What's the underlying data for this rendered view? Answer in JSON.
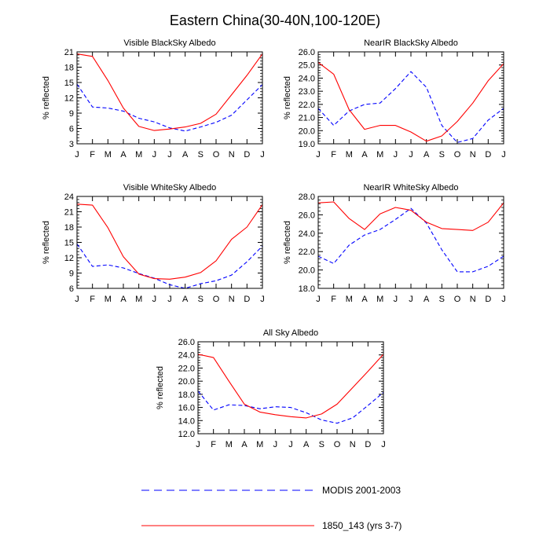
{
  "figure_title": "Eastern China(30-40N,100-120E)",
  "legend": [
    {
      "label": "MODIS 2001-2003",
      "style": "dashed",
      "color": "#0000ff"
    },
    {
      "label": "1850_143 (yrs 3-7)",
      "style": "solid",
      "color": "#ff0000"
    }
  ],
  "chart_data": [
    {
      "type": "line",
      "title": "Visible BlackSky Albedo",
      "ylabel": "% reflected",
      "categories": [
        "J",
        "F",
        "M",
        "A",
        "M",
        "J",
        "J",
        "A",
        "S",
        "O",
        "N",
        "D",
        "J"
      ],
      "ylim": [
        3,
        21
      ],
      "yticks": [
        3,
        6,
        9,
        12,
        15,
        18,
        21
      ],
      "ytick_labels": [
        "3",
        "6",
        "9",
        "12",
        "15",
        "18",
        "21"
      ],
      "series": [
        {
          "name": "MODIS 2001-2003",
          "color": "#0000ff",
          "dash": true,
          "values": [
            14.7,
            10.2,
            10.0,
            9.4,
            8.0,
            7.3,
            6.1,
            5.5,
            6.3,
            7.2,
            8.6,
            11.6,
            14.6
          ]
        },
        {
          "name": "1850_143 (yrs 3-7)",
          "color": "#ff0000",
          "dash": false,
          "values": [
            20.6,
            20.1,
            15.4,
            10.0,
            6.4,
            5.6,
            5.9,
            6.3,
            7.0,
            8.8,
            12.6,
            16.4,
            20.6
          ]
        }
      ]
    },
    {
      "type": "line",
      "title": "NearIR BlackSky Albedo",
      "ylabel": "% reflected",
      "categories": [
        "J",
        "F",
        "M",
        "A",
        "M",
        "J",
        "J",
        "A",
        "S",
        "O",
        "N",
        "D",
        "J"
      ],
      "ylim": [
        19.0,
        26.0
      ],
      "yticks": [
        19,
        20,
        21,
        22,
        23,
        24,
        25,
        26
      ],
      "ytick_labels": [
        "19.0",
        "20.0",
        "21.0",
        "22.0",
        "23.0",
        "24.0",
        "25.0",
        "26.0"
      ],
      "series": [
        {
          "name": "MODIS 2001-2003",
          "color": "#0000ff",
          "dash": true,
          "values": [
            21.7,
            20.4,
            21.5,
            22.0,
            22.1,
            23.2,
            24.5,
            23.3,
            20.4,
            19.1,
            19.4,
            20.8,
            21.7
          ]
        },
        {
          "name": "1850_143 (yrs 3-7)",
          "color": "#ff0000",
          "dash": false,
          "values": [
            25.2,
            24.3,
            21.6,
            20.1,
            20.4,
            20.4,
            19.9,
            19.2,
            19.6,
            20.7,
            22.1,
            23.8,
            25.1
          ]
        }
      ]
    },
    {
      "type": "line",
      "title": "Visible WhiteSky Albedo",
      "ylabel": "% reflected",
      "categories": [
        "J",
        "F",
        "M",
        "A",
        "M",
        "J",
        "J",
        "A",
        "S",
        "O",
        "N",
        "D",
        "J"
      ],
      "ylim": [
        6,
        24
      ],
      "yticks": [
        6,
        9,
        12,
        15,
        18,
        21,
        24
      ],
      "ytick_labels": [
        "6",
        "9",
        "12",
        "15",
        "18",
        "21",
        "24"
      ],
      "series": [
        {
          "name": "MODIS 2001-2003",
          "color": "#0000ff",
          "dash": true,
          "values": [
            14.7,
            10.3,
            10.6,
            10.0,
            8.9,
            8.0,
            6.7,
            6.0,
            6.9,
            7.5,
            8.6,
            11.2,
            14.3
          ]
        },
        {
          "name": "1850_143 (yrs 3-7)",
          "color": "#ff0000",
          "dash": false,
          "values": [
            22.5,
            22.3,
            17.9,
            12.2,
            8.8,
            7.9,
            7.8,
            8.2,
            9.1,
            11.4,
            15.6,
            18.0,
            22.4
          ]
        }
      ]
    },
    {
      "type": "line",
      "title": "NearIR WhiteSky Albedo",
      "ylabel": "% reflected",
      "categories": [
        "J",
        "F",
        "M",
        "A",
        "M",
        "J",
        "J",
        "A",
        "S",
        "O",
        "N",
        "D",
        "J"
      ],
      "ylim": [
        18.0,
        28.0
      ],
      "yticks": [
        18,
        20,
        22,
        24,
        26,
        28
      ],
      "ytick_labels": [
        "18.0",
        "20.0",
        "22.0",
        "24.0",
        "26.0",
        "28.0"
      ],
      "series": [
        {
          "name": "MODIS 2001-2003",
          "color": "#0000ff",
          "dash": true,
          "values": [
            21.5,
            20.7,
            22.7,
            23.8,
            24.4,
            25.5,
            26.7,
            25.1,
            22.2,
            19.8,
            19.8,
            20.4,
            21.5
          ]
        },
        {
          "name": "1850_143 (yrs 3-7)",
          "color": "#ff0000",
          "dash": false,
          "values": [
            27.3,
            27.4,
            25.6,
            24.4,
            26.1,
            26.8,
            26.5,
            25.2,
            24.5,
            24.4,
            24.3,
            25.2,
            27.3
          ]
        }
      ]
    },
    {
      "type": "line",
      "title": "All Sky Albedo",
      "ylabel": "% reflected",
      "categories": [
        "J",
        "F",
        "M",
        "A",
        "M",
        "J",
        "J",
        "A",
        "S",
        "O",
        "N",
        "D",
        "J"
      ],
      "ylim": [
        12.0,
        26.0
      ],
      "yticks": [
        12,
        14,
        16,
        18,
        20,
        22,
        24,
        26
      ],
      "ytick_labels": [
        "12.0",
        "14.0",
        "16.0",
        "18.0",
        "20.0",
        "22.0",
        "24.0",
        "26.0"
      ],
      "series": [
        {
          "name": "MODIS 2001-2003",
          "color": "#0000ff",
          "dash": true,
          "values": [
            18.5,
            15.6,
            16.4,
            16.3,
            15.8,
            16.1,
            16.0,
            15.2,
            14.1,
            13.6,
            14.4,
            16.3,
            18.3
          ]
        },
        {
          "name": "1850_143 (yrs 3-7)",
          "color": "#ff0000",
          "dash": false,
          "values": [
            24.1,
            23.6,
            20.0,
            16.5,
            15.3,
            14.9,
            14.6,
            14.4,
            15.0,
            16.5,
            19.0,
            21.5,
            24.1
          ]
        }
      ]
    }
  ]
}
